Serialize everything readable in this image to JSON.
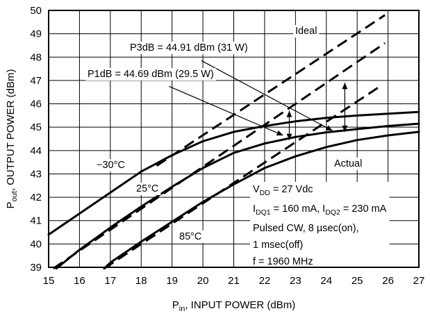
{
  "chart_data": {
    "type": "line",
    "xlabel": {
      "main": "P",
      "sub": "in",
      "rest": ", INPUT POWER (dBm)"
    },
    "ylabel": {
      "main": "P",
      "sub": "out",
      "rest": ", OUTPUT POWER (dBm)"
    },
    "xlim": [
      15,
      27
    ],
    "ylim": [
      39,
      50
    ],
    "x_ticks": [
      15,
      16,
      17,
      18,
      19,
      20,
      21,
      22,
      23,
      24,
      25,
      26,
      27
    ],
    "y_ticks": [
      39,
      40,
      41,
      42,
      43,
      44,
      45,
      46,
      47,
      48,
      49,
      50
    ],
    "grid": true,
    "series": [
      {
        "name": "-30°C",
        "style": "solid",
        "points": [
          [
            15,
            40.4
          ],
          [
            16,
            41.3
          ],
          [
            17,
            42.2
          ],
          [
            18,
            43.1
          ],
          [
            19,
            43.8
          ],
          [
            20,
            44.4
          ],
          [
            21,
            44.8
          ],
          [
            22,
            45.05
          ],
          [
            23,
            45.25
          ],
          [
            24,
            45.4
          ],
          [
            25,
            45.5
          ],
          [
            26,
            45.58
          ],
          [
            27,
            45.65
          ]
        ]
      },
      {
        "name": "25°C",
        "style": "solid",
        "points": [
          [
            15.25,
            38.95
          ],
          [
            16,
            39.75
          ],
          [
            17,
            40.7
          ],
          [
            18,
            41.6
          ],
          [
            19,
            42.45
          ],
          [
            20,
            43.25
          ],
          [
            21,
            43.9
          ],
          [
            22,
            44.3
          ],
          [
            23,
            44.58
          ],
          [
            24,
            44.78
          ],
          [
            25,
            44.92
          ],
          [
            26,
            45.05
          ],
          [
            27,
            45.15
          ]
        ]
      },
      {
        "name": "85°C",
        "style": "solid",
        "points": [
          [
            16.8,
            38.95
          ],
          [
            17,
            39.2
          ],
          [
            18,
            40.1
          ],
          [
            19,
            40.95
          ],
          [
            20,
            41.8
          ],
          [
            21,
            42.55
          ],
          [
            22,
            43.25
          ],
          [
            23,
            43.75
          ],
          [
            24,
            44.15
          ],
          [
            25,
            44.45
          ],
          [
            26,
            44.65
          ],
          [
            27,
            44.8
          ]
        ]
      },
      {
        "name": "Ideal",
        "style": "dashed",
        "points": [
          [
            18.5,
            43.35
          ],
          [
            25.9,
            49.8
          ]
        ]
      },
      {
        "name": "Ideal",
        "style": "dashed",
        "points": [
          [
            15.15,
            38.95
          ],
          [
            25.9,
            48.6
          ]
        ]
      },
      {
        "name": "Ideal",
        "style": "dashed",
        "points": [
          [
            16.8,
            38.95
          ],
          [
            25.8,
            46.8
          ]
        ]
      }
    ],
    "annotations": {
      "ideal": "Ideal",
      "actual": "Actual",
      "p3db": "P3dB = 44.91 dBm (31 W)",
      "p1db": "P1dB = 44.69 dBm (29.5 W)",
      "t_cold": "−30°C",
      "t_room": "25°C",
      "t_hot": "85°C"
    },
    "conditions": {
      "vdd": {
        "main": "V",
        "sub": "DD",
        "rest": " = 27 Vdc"
      },
      "idq": {
        "a": "I",
        "asub": "DQ1",
        "b": " = 160 mA, I",
        "bsub": "DQ2",
        "c": " = 230 mA"
      },
      "pulse": "Pulsed CW, 8 µsec(on),",
      "period": "1 msec(off)",
      "freq": "f = 1960 MHz"
    }
  }
}
